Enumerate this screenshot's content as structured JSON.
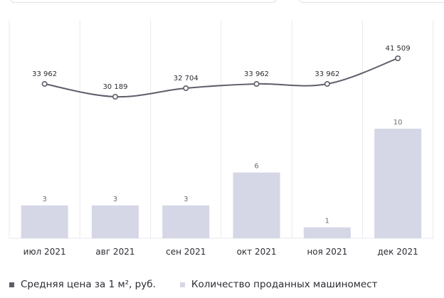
{
  "chart_data": {
    "type": "bar",
    "categories": [
      "июл 2021",
      "авг 2021",
      "сен 2021",
      "окт 2021",
      "ноя 2021",
      "дек 2021"
    ],
    "series": [
      {
        "name": "Средняя цена за 1 м², руб.",
        "type": "line",
        "values": [
          33962,
          30189,
          32704,
          33962,
          33962,
          41509
        ],
        "labels": [
          "33 962",
          "30 189",
          "32 704",
          "33 962",
          "33 962",
          "41 509"
        ]
      },
      {
        "name": "Количество проданных машиномест",
        "type": "bar",
        "values": [
          3,
          3,
          3,
          6,
          1,
          10
        ],
        "labels": [
          "3",
          "3",
          "3",
          "6",
          "1",
          "10"
        ]
      }
    ],
    "grid": "vertical",
    "legend": "bottom-left"
  },
  "colors": {
    "line": "#5e5e6b",
    "bar": "#d6d7e6",
    "grid": "#e9eaf0",
    "text": "#2b2b33",
    "value_label": "#6b6b78"
  },
  "legend": {
    "line_label": "Средняя цена за 1 м², руб.",
    "bar_label": "Количество проданных машиномест"
  }
}
